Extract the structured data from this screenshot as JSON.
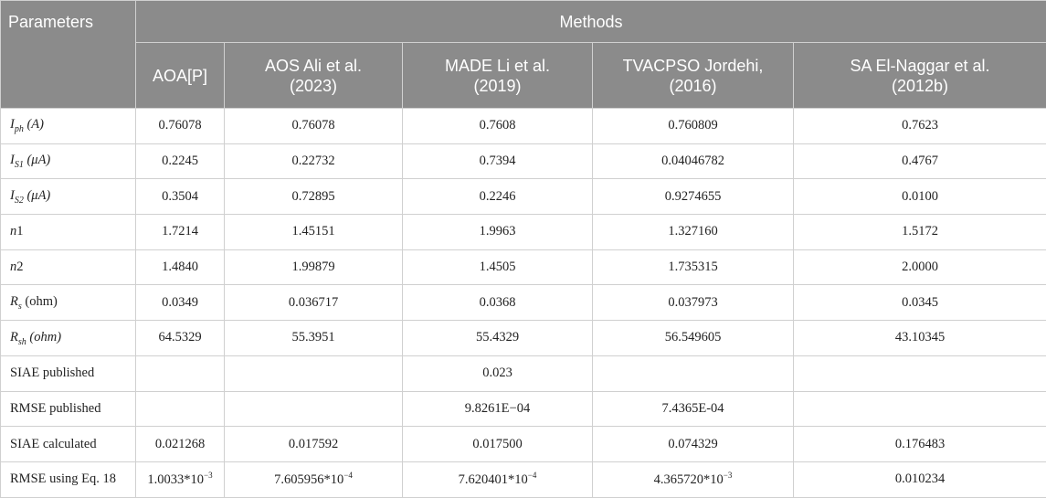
{
  "table": {
    "header": {
      "parameters": "Parameters",
      "methods": "Methods",
      "columns": [
        [
          "AOA[P]"
        ],
        [
          "AOS Ali et al.",
          "(2023)"
        ],
        [
          "MADE Li et al.",
          "(2019)"
        ],
        [
          "TVACPSO Jordehi,",
          "(2016)"
        ],
        [
          "SA El-Naggar et al.",
          "(2012b)"
        ]
      ]
    },
    "rows": [
      {
        "label": {
          "symbol": "I",
          "sub": "ph",
          "unit": "(A)"
        },
        "cells": [
          "0.76078",
          "0.76078",
          "0.7608",
          "0.760809",
          "0.7623"
        ]
      },
      {
        "label": {
          "symbol": "I",
          "sub": "S1",
          "unit": "(μA)"
        },
        "cells": [
          "0.2245",
          "0.22732",
          "0.7394",
          "0.04046782",
          "0.4767"
        ]
      },
      {
        "label": {
          "symbol": "I",
          "sub": "S2",
          "unit": "(μA)"
        },
        "cells": [
          "0.3504",
          "0.72895",
          "0.2246",
          "0.9274655",
          "0.0100"
        ]
      },
      {
        "label": {
          "symbol": "n",
          "sub": null,
          "unit": "1"
        },
        "cells": [
          "1.7214",
          "1.45151",
          "1.9963",
          "1.327160",
          "1.5172"
        ]
      },
      {
        "label": {
          "symbol": "n",
          "sub": null,
          "unit": "2"
        },
        "cells": [
          "1.4840",
          "1.99879",
          "1.4505",
          "1.735315",
          "2.0000"
        ]
      },
      {
        "label": {
          "symbol": "R",
          "sub": "s",
          "unit": "(ohm)"
        },
        "cells": [
          "0.0349",
          "0.036717",
          "0.0368",
          "0.037973",
          "0.0345"
        ]
      },
      {
        "label": {
          "symbol": "R",
          "sub": "sh",
          "unit": "(ohm)"
        },
        "cells": [
          "64.5329",
          "55.3951",
          "55.4329",
          "56.549605",
          "43.10345"
        ]
      },
      {
        "label": "SIAE published",
        "cells": [
          null,
          null,
          "0.023",
          null,
          null
        ]
      },
      {
        "label": "RMSE published",
        "cells": [
          null,
          null,
          "9.8261E−04",
          "7.4365E-04",
          null
        ]
      },
      {
        "label": "SIAE calculated",
        "cells": [
          "0.021268",
          "0.017592",
          "0.017500",
          "0.074329",
          "0.176483"
        ]
      },
      {
        "label": "RMSE using Eq. 18",
        "cells": [
          {
            "base": "1.0033*10",
            "exp": "−3"
          },
          {
            "base": "7.605956*10",
            "exp": "−4"
          },
          {
            "base": "7.620401*10",
            "exp": "−4"
          },
          {
            "base": "4.365720*10",
            "exp": "−3"
          },
          "0.010234"
        ]
      }
    ]
  }
}
